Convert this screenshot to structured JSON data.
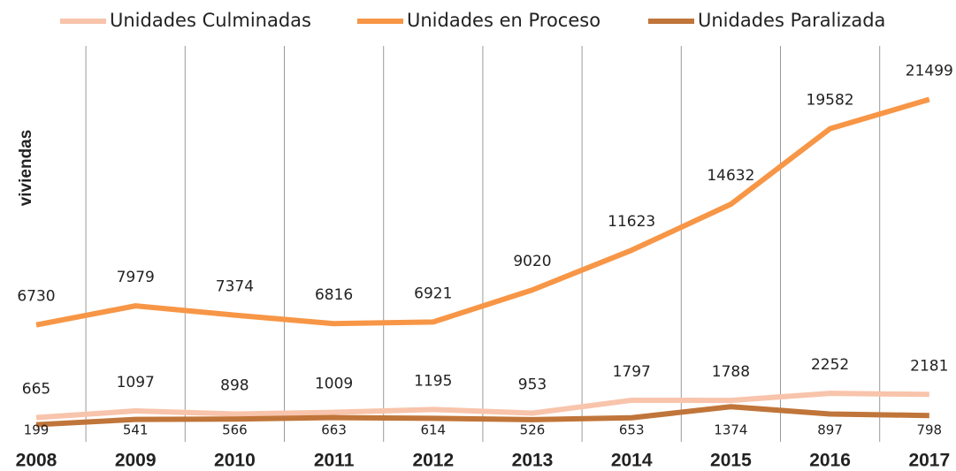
{
  "chart_data": {
    "type": "line",
    "y_label": "viviendas",
    "categories": [
      "2008",
      "2009",
      "2010",
      "2011",
      "2012",
      "2013",
      "2014",
      "2015",
      "2016",
      "2017"
    ],
    "series": [
      {
        "name": "Unidades Culminadas",
        "color": "#f8c4ab",
        "values": [
          665,
          1097,
          898,
          1009,
          1195,
          953,
          1797,
          1788,
          2252,
          2181
        ]
      },
      {
        "name": "Unidades en Proceso",
        "color": "#f79646",
        "values": [
          6730,
          7979,
          7374,
          6816,
          6921,
          9020,
          11623,
          14632,
          19582,
          21499
        ]
      },
      {
        "name": "Unidades Paralizada",
        "color": "#c0753a",
        "values": [
          199,
          541,
          566,
          663,
          614,
          526,
          653,
          1374,
          897,
          798
        ]
      }
    ],
    "ylim": [
      0,
      25000
    ]
  }
}
